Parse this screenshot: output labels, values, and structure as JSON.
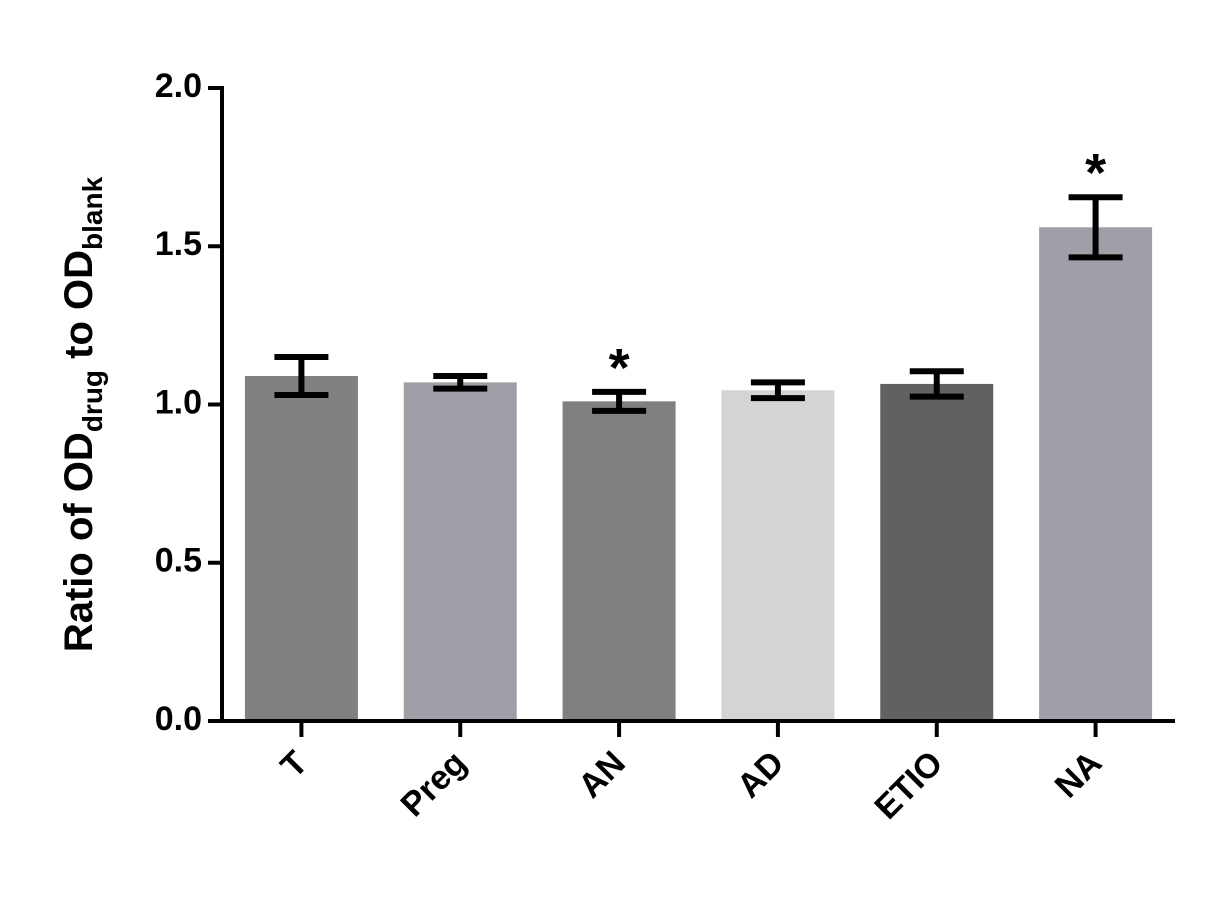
{
  "chart_data": {
    "type": "bar",
    "ylabel": [
      "Ratio of OD",
      "drug",
      " to OD",
      "blank"
    ],
    "categories": [
      "T",
      "Preg",
      "AN",
      "AD",
      "ETIO",
      "NA"
    ],
    "values": [
      1.09,
      1.07,
      1.01,
      1.045,
      1.065,
      1.56
    ],
    "errors": [
      0.06,
      0.02,
      0.03,
      0.025,
      0.04,
      0.095
    ],
    "colors": [
      "#808080",
      "#a09fa8",
      "#808080",
      "#d4d4d4",
      "#616161",
      "#a09fa8"
    ],
    "significance": [
      null,
      null,
      "*",
      null,
      null,
      "*"
    ],
    "ylim": [
      0,
      2.0
    ],
    "yticks": [
      {
        "value": 0,
        "label": "0.0"
      },
      {
        "value": 0.5,
        "label": "0.5"
      },
      {
        "value": 1.0,
        "label": "1.0"
      },
      {
        "value": 1.5,
        "label": "1.5"
      },
      {
        "value": 2.0,
        "label": "2.0"
      }
    ],
    "grid": false
  }
}
